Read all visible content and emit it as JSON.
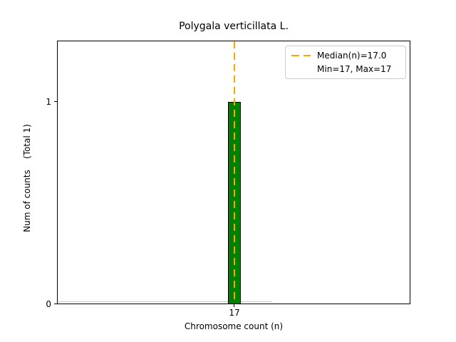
{
  "figure": {
    "background_color": "#ffffff"
  },
  "chart_data": {
    "type": "bar",
    "title": "Polygala verticillata L.",
    "xlabel": "Chromosome count (n)",
    "ylabel": "Num of counts    (Total 1)",
    "categories": [
      17
    ],
    "values": [
      1
    ],
    "x_ticks": [
      "17"
    ],
    "y_ticks": [
      "0",
      "1"
    ],
    "ylim": [
      0,
      1.3
    ],
    "grid": false,
    "bar_color": "#008000",
    "bar_edge_color": "#000000",
    "median_line": {
      "value": 17.0,
      "color": "#FFA500",
      "style": "dashed",
      "orientation": "vertical"
    },
    "legend": {
      "position": "upper right",
      "entries": [
        {
          "label": "Median(n)=17.0",
          "marker": "orange-dashed-line"
        },
        {
          "label": "Min=17, Max=17",
          "marker": "none"
        }
      ]
    },
    "stats": {
      "total_counts": 1,
      "min": 17,
      "max": 17,
      "median": 17.0
    }
  }
}
